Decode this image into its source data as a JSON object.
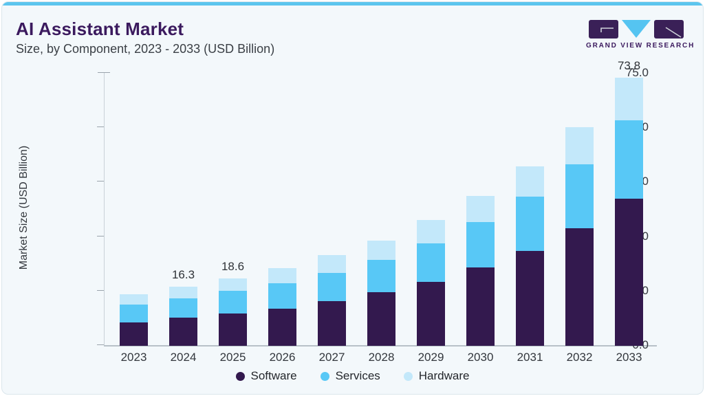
{
  "header": {
    "title": "AI Assistant Market",
    "subtitle": "Size, by Component, 2023 - 2033 (USD Billion)",
    "logo_text": "GRAND VIEW RESEARCH"
  },
  "chart_data": {
    "type": "bar",
    "stacked": true,
    "title": "AI Assistant Market Size, by Component, 2023 - 2033 (USD Billion)",
    "categories": [
      "2023",
      "2024",
      "2025",
      "2026",
      "2027",
      "2028",
      "2029",
      "2030",
      "2031",
      "2032",
      "2033"
    ],
    "series": [
      {
        "name": "Software",
        "color": "#33194e",
        "values": [
          6.5,
          7.7,
          8.9,
          10.3,
          12.3,
          14.7,
          17.7,
          21.5,
          26.2,
          32.3,
          40.5
        ]
      },
      {
        "name": "Services",
        "color": "#58c8f6",
        "values": [
          4.9,
          5.3,
          6.2,
          7.0,
          7.8,
          9.0,
          10.6,
          12.5,
          14.9,
          17.7,
          21.6
        ]
      },
      {
        "name": "Hardware",
        "color": "#c3e8fa",
        "values": [
          2.8,
          3.3,
          3.5,
          4.1,
          4.9,
          5.3,
          6.4,
          7.2,
          8.4,
          10.2,
          11.7
        ]
      }
    ],
    "totals": [
      14.2,
      16.3,
      18.6,
      21.4,
      25.0,
      29.0,
      34.7,
      41.2,
      49.5,
      60.2,
      73.8
    ],
    "shown_total_labels": [
      "",
      "16.3",
      "18.6",
      "",
      "",
      "",
      "",
      "",
      "",
      "",
      "73.8"
    ],
    "ylabel": "Market Size (USD Billion)",
    "yticks": [
      75.0,
      60.0,
      45.0,
      30.0,
      15.0,
      0.0
    ],
    "ytick_labels": [
      "75.0",
      "60.0",
      "45.0",
      "30.0",
      "15.0",
      "0.0"
    ],
    "ylim": [
      0,
      75
    ],
    "grid": false,
    "legend": [
      "Software",
      "Services",
      "Hardware"
    ],
    "legend_position": "bottom"
  },
  "colors": {
    "accent_strip": "#5cc5ee",
    "card_background": "#f3f8fb",
    "brand_purple": "#3b1a5e",
    "logo_triangle_blue": "#55c4f1"
  }
}
